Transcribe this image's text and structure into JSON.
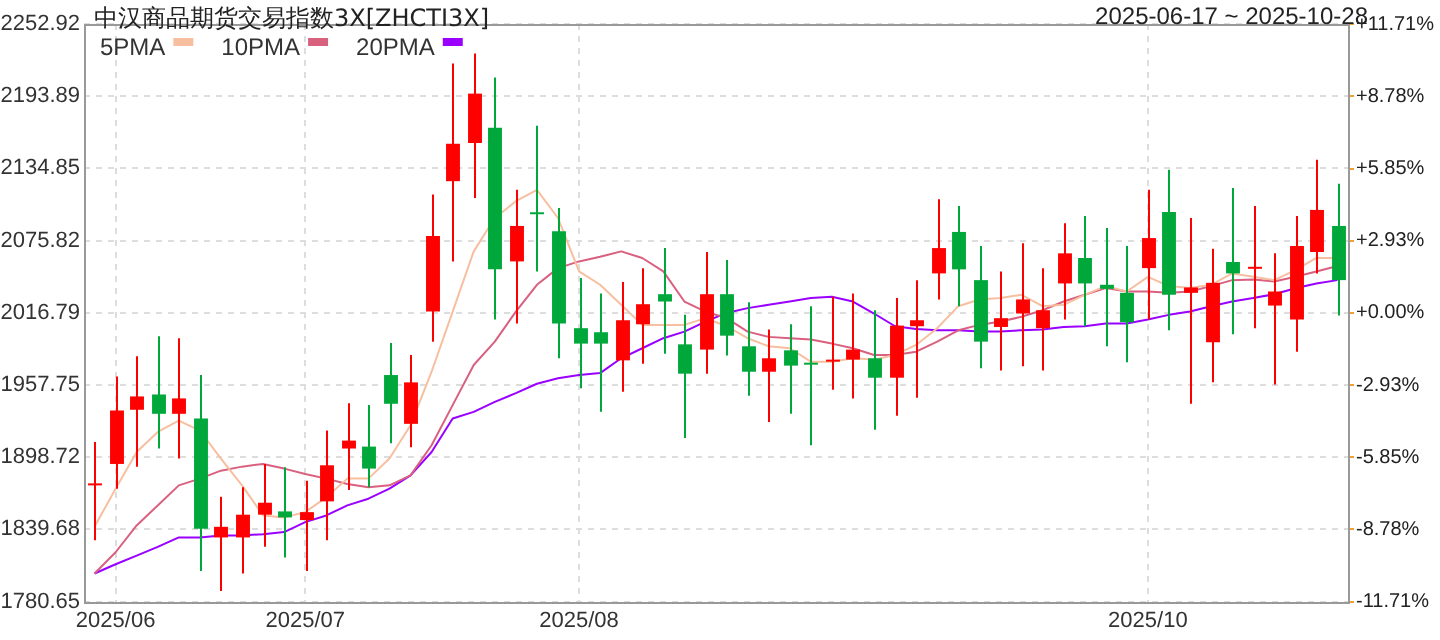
{
  "chart_data": {
    "type": "candlestick",
    "title": "中汉商品期货交易指数3X[ZHCTI3X]",
    "annotations": [
      "2025-06-17 ~ 2025-10-28"
    ],
    "categories": [
      null,
      "2025/06",
      null,
      null,
      null,
      null,
      null,
      null,
      null,
      null,
      "2025/07",
      null,
      null,
      null,
      null,
      null,
      null,
      null,
      null,
      null,
      null,
      null,
      null,
      "2025/08",
      null,
      null,
      null,
      null,
      null,
      null,
      null,
      null,
      null,
      null,
      null,
      null,
      null,
      null,
      null,
      null,
      null,
      null,
      null,
      null,
      null,
      null,
      null,
      null,
      null,
      null,
      "2025/10",
      null,
      null,
      null,
      null,
      null,
      null,
      null,
      null,
      null
    ],
    "ohlc": [
      [
        1877.3,
        1911.2,
        1830.9,
        1877.3
      ],
      [
        1893.2,
        1964.8,
        1873.0,
        1936.9
      ],
      [
        1937.5,
        1981.2,
        1891.0,
        1948.4
      ],
      [
        1950.0,
        1997.6,
        1905.8,
        1934.2
      ],
      [
        1934.2,
        1996.0,
        1897.6,
        1946.8
      ],
      [
        1930.4,
        1965.9,
        1805.7,
        1840.2
      ],
      [
        1833.1,
        1866.4,
        1789.3,
        1841.8
      ],
      [
        1833.1,
        1874.1,
        1803.6,
        1851.7
      ],
      [
        1851.7,
        1893.2,
        1825.4,
        1861.5
      ],
      [
        1854.4,
        1890.5,
        1816.7,
        1849.5
      ],
      [
        1847.3,
        1879.5,
        1805.7,
        1853.8
      ],
      [
        1862.6,
        1920.5,
        1830.9,
        1892.1
      ],
      [
        1905.8,
        1942.9,
        1871.9,
        1912.3
      ],
      [
        1907.4,
        1941.3,
        1874.1,
        1889.4
      ],
      [
        1965.9,
        1992.1,
        1910.1,
        1942.4
      ],
      [
        1926.0,
        1982.3,
        1906.9,
        1959.9
      ],
      [
        2017.8,
        2113.5,
        1993.2,
        2079.6
      ],
      [
        2124.4,
        2220.6,
        2058.8,
        2155.0
      ],
      [
        2155.6,
        2228.8,
        2110.7,
        2196.0
      ],
      [
        2168.1,
        2209.1,
        2011.3,
        2052.3
      ],
      [
        2058.8,
        2117.3,
        2008.0,
        2087.8
      ],
      [
        2099.0,
        2169.8,
        2050.6,
        2098.7
      ],
      [
        2083.4,
        2102.5,
        1979.6,
        2008.0
      ],
      [
        2004.2,
        2045.2,
        1955.0,
        1991.6
      ],
      [
        2000.9,
        2032.6,
        1935.8,
        1991.6
      ],
      [
        1977.9,
        2041.9,
        1952.2,
        2010.7
      ],
      [
        2007.4,
        2053.3,
        1975.2,
        2023.8
      ],
      [
        2032.0,
        2069.7,
        1983.4,
        2026.0
      ],
      [
        1991.0,
        2015.1,
        1914.5,
        1967.0
      ],
      [
        1986.7,
        2066.5,
        1967.0,
        2032.0
      ],
      [
        2032.0,
        2059.9,
        1981.8,
        1998.1
      ],
      [
        1989.4,
        2025.5,
        1948.9,
        1968.6
      ],
      [
        1968.6,
        2003.1,
        1927.6,
        1979.6
      ],
      [
        1986.1,
        2007.4,
        1934.2,
        1973.6
      ],
      [
        1976.0,
        2022.2,
        1908.5,
        1975.7
      ],
      [
        1978.5,
        2029.9,
        1953.9,
        1978.5
      ],
      [
        1978.5,
        2032.6,
        1946.8,
        1986.7
      ],
      [
        1979.6,
        2018.9,
        1921.1,
        1963.7
      ],
      [
        1963.7,
        2028.8,
        1932.6,
        2006.3
      ],
      [
        2005.8,
        2043.5,
        1947.3,
        2010.7
      ],
      [
        2049.0,
        2109.6,
        2027.7,
        2069.7
      ],
      [
        2082.9,
        2104.2,
        2022.2,
        2052.3
      ],
      [
        2043.5,
        2071.4,
        1971.4,
        1993.2
      ],
      [
        2005.2,
        2050.6,
        1969.7,
        2012.4
      ],
      [
        2016.2,
        2073.6,
        1973.0,
        2027.7
      ],
      [
        2004.2,
        2053.3,
        1969.7,
        2018.9
      ],
      [
        2040.8,
        2090.0,
        2011.3,
        2065.4
      ],
      [
        2061.6,
        2096.0,
        2005.8,
        2040.8
      ],
      [
        2039.7,
        2086.1,
        1989.4,
        2036.4
      ],
      [
        2033.1,
        2071.4,
        1976.3,
        2009.1
      ],
      [
        2053.3,
        2117.3,
        2011.3,
        2077.9
      ],
      [
        2099.3,
        2133.7,
        2002.5,
        2031.5
      ],
      [
        2033.1,
        2094.3,
        1942.4,
        2037.5
      ],
      [
        1992.7,
        2069.2,
        1959.9,
        2041.3
      ],
      [
        2058.3,
        2118.9,
        1999.2,
        2049.0
      ],
      [
        2054.4,
        2104.2,
        2004.2,
        2054.4
      ],
      [
        2022.7,
        2065.4,
        1958.2,
        2034.2
      ],
      [
        2011.3,
        2096.0,
        1985.0,
        2071.4
      ],
      [
        2066.5,
        2141.9,
        2049.0,
        2100.9
      ],
      [
        2087.8,
        2122.2,
        2014.6,
        2043.5
      ]
    ],
    "colors": [
      "#ff0000",
      "#ff0000",
      "#ff0000",
      "#00a83c",
      "#ff0000",
      "#00a83c",
      "#ff0000",
      "#ff0000",
      "#ff0000",
      "#00a83c",
      "#ff0000",
      "#ff0000",
      "#ff0000",
      "#00a83c",
      "#00a83c",
      "#ff0000",
      "#ff0000",
      "#ff0000",
      "#ff0000",
      "#00a83c",
      "#ff0000",
      "#00a83c",
      "#00a83c",
      "#00a83c",
      "#00a83c",
      "#ff0000",
      "#ff0000",
      "#00a83c",
      "#00a83c",
      "#ff0000",
      "#00a83c",
      "#00a83c",
      "#ff0000",
      "#00a83c",
      "#00a83c",
      "#ff0000",
      "#ff0000",
      "#00a83c",
      "#ff0000",
      "#ff0000",
      "#ff0000",
      "#00a83c",
      "#00a83c",
      "#ff0000",
      "#ff0000",
      "#ff0000",
      "#ff0000",
      "#00a83c",
      "#00a83c",
      "#00a83c",
      "#ff0000",
      "#00a83c",
      "#ff0000",
      "#ff0000",
      "#00a83c",
      "#ff0000",
      "#ff0000",
      "#ff0000",
      "#ff0000",
      "#00a83c"
    ],
    "series": [
      {
        "name": "5PMA",
        "type": "line",
        "color": "#f7bfa0",
        "values": [
          1841.8,
          1873.0,
          1903.0,
          1919.4,
          1928.7,
          1920.5,
          1897.6,
          1875.7,
          1851.1,
          1849.5,
          1853.8,
          1865.9,
          1881.2,
          1881.2,
          1897.6,
          1924.9,
          1968.6,
          2017.8,
          2067.0,
          2094.3,
          2108.0,
          2117.3,
          2094.3,
          2050.6,
          2039.7,
          2023.3,
          2006.9,
          2006.9,
          2006.9,
          2012.4,
          2005.8,
          1996.0,
          1989.4,
          1987.8,
          1976.8,
          1976.8,
          1979.6,
          1978.5,
          1982.3,
          1990.5,
          2004.2,
          2022.2,
          2027.7,
          2028.8,
          2031.5,
          2022.2,
          2023.3,
          2031.5,
          2038.6,
          2034.2,
          2046.2,
          2038.6,
          2037.0,
          2039.7,
          2049.0,
          2046.2,
          2043.5,
          2051.7,
          2061.6,
          2061.6
        ]
      },
      {
        "name": "10PMA",
        "type": "line",
        "color": "#d9607f",
        "values": [
          1803.6,
          1821.0,
          1842.9,
          1859.3,
          1875.7,
          1881.2,
          1887.7,
          1891.0,
          1893.2,
          1889.4,
          1885.0,
          1881.2,
          1876.8,
          1874.1,
          1875.7,
          1883.9,
          1908.5,
          1941.3,
          1974.1,
          1993.2,
          2017.8,
          2039.7,
          2053.3,
          2058.8,
          2062.6,
          2067.0,
          2061.6,
          2050.6,
          2026.0,
          2017.8,
          2012.4,
          2001.4,
          1997.1,
          1996.0,
          1994.9,
          1991.6,
          1987.8,
          1982.3,
          1982.3,
          1985.0,
          1993.2,
          2002.5,
          2006.9,
          2009.6,
          2013.5,
          2018.9,
          2026.0,
          2031.5,
          2037.0,
          2034.2,
          2034.2,
          2033.1,
          2034.2,
          2038.6,
          2043.5,
          2044.1,
          2042.4,
          2046.2,
          2050.6,
          2055.0
        ]
      },
      {
        "name": "20PMA",
        "type": "line",
        "color": "#9900ff",
        "values": [
          1803.6,
          1811.2,
          1818.3,
          1825.4,
          1833.1,
          1833.1,
          1834.7,
          1834.7,
          1835.8,
          1837.5,
          1845.6,
          1851.1,
          1859.3,
          1864.8,
          1873.0,
          1883.9,
          1903.0,
          1930.4,
          1935.8,
          1944.0,
          1951.1,
          1958.8,
          1963.2,
          1965.9,
          1967.5,
          1979.6,
          1987.8,
          1996.0,
          2001.4,
          2009.6,
          2016.7,
          2020.6,
          2023.3,
          2026.0,
          2028.8,
          2029.9,
          2026.0,
          2016.2,
          2005.8,
          2003.6,
          2002.5,
          2002.5,
          2001.4,
          2001.4,
          2002.5,
          2003.1,
          2005.2,
          2005.8,
          2008.0,
          2008.0,
          2011.3,
          2015.1,
          2017.8,
          2022.2,
          2026.0,
          2028.8,
          2032.0,
          2036.9,
          2040.8,
          2043.5
        ]
      }
    ],
    "ylim": [
      1780.65,
      2252.92
    ],
    "yticks": [
      1780.65,
      1839.68,
      1898.72,
      1957.75,
      2016.79,
      2075.82,
      2134.85,
      2193.89,
      2252.92
    ],
    "y2lim": [
      -11.71,
      11.71
    ],
    "y2ticks": [
      {
        "value": -11.71,
        "label": "-11.71%"
      },
      {
        "value": -8.78,
        "label": "-8.78%"
      },
      {
        "value": -5.85,
        "label": "-5.85%"
      },
      {
        "value": -2.93,
        "label": "-2.93%"
      },
      {
        "value": 0,
        "label": "+0.00%"
      },
      {
        "value": 2.93,
        "label": "+2.93%"
      },
      {
        "value": 5.85,
        "label": "+5.85%"
      },
      {
        "value": 8.78,
        "label": "+8.78%"
      },
      {
        "value": 11.71,
        "label": "+11.71%"
      }
    ],
    "grid": true,
    "legend": "top left",
    "marker": "none",
    "line_style": "solid"
  }
}
